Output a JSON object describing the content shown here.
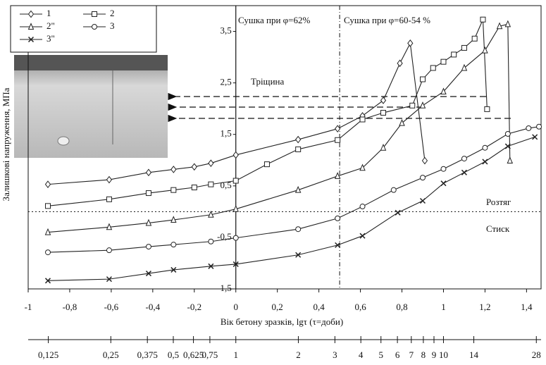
{
  "chart_data": {
    "type": "line",
    "ylabel": "Залишкові напруження, МПа",
    "xlabel": "Вік бетону зразків, lgτ (τ=доби)",
    "xlim": [
      -1,
      1.47
    ],
    "ylim": [
      -1.5,
      4.0
    ],
    "xticks": [
      -1,
      {
        "value": -0.8,
        "label": "-0,8"
      },
      {
        "value": -0.6,
        "label": "-0,6"
      },
      {
        "value": -0.4,
        "label": "-0,4"
      },
      {
        "value": -0.2,
        "label": "-0,2"
      },
      0,
      {
        "value": 0.2,
        "label": "0,2"
      },
      {
        "value": 0.4,
        "label": "0,4"
      },
      {
        "value": 0.6,
        "label": "0,6"
      },
      {
        "value": 0.8,
        "label": "0,8"
      },
      1,
      {
        "value": 1.2,
        "label": "1,2"
      },
      {
        "value": 1.4,
        "label": "1,4"
      }
    ],
    "yticks": [
      {
        "value": 3.5,
        "label": "3,5"
      },
      {
        "value": 2.5,
        "label": "2,5"
      },
      {
        "value": 1.5,
        "label": "1,5"
      },
      {
        "value": 0.5,
        "label": "0,5"
      },
      {
        "value": -0.5,
        "label": "-0,5"
      },
      {
        "value": -1.5,
        "label": "-1,5"
      }
    ],
    "x2ticks": [
      {
        "value": 0.125,
        "label": "0,125"
      },
      {
        "value": 0.25,
        "label": "0,25"
      },
      {
        "value": 0.375,
        "label": "0,375"
      },
      {
        "value": 0.5,
        "label": "0,5"
      },
      {
        "value": 0.625,
        "label": "0,625"
      },
      {
        "value": 0.75,
        "label": "0,75"
      },
      1,
      2,
      3,
      4,
      5,
      6,
      7,
      8,
      9,
      10,
      14,
      28
    ],
    "x2scale": "log",
    "vline": 0.5,
    "hline": 0,
    "annotations": [
      "Сушка при φ=62%",
      "Сушка при φ=60-54 %",
      "Тріщина",
      "Розтяг",
      "Стиск"
    ],
    "series": [
      {
        "name": "1",
        "color": "#222",
        "marker": "diamond",
        "x": [
          -0.905,
          -0.61,
          -0.42,
          -0.3,
          -0.2,
          -0.12,
          0,
          0.3,
          0.49,
          0.61,
          0.71,
          0.79,
          0.84,
          0.91
        ],
        "values": [
          0.53,
          0.62,
          0.76,
          0.82,
          0.87,
          0.94,
          1.1,
          1.4,
          1.61,
          1.86,
          2.16,
          2.88,
          3.27,
          0.99
        ]
      },
      {
        "name": "2",
        "color": "#222",
        "marker": "square",
        "x": [
          -0.905,
          -0.61,
          -0.42,
          -0.3,
          -0.2,
          -0.12,
          0,
          0.15,
          0.3,
          0.49,
          0.61,
          0.71,
          0.85,
          0.9,
          0.95,
          1,
          1.05,
          1.1,
          1.15,
          1.19,
          1.21
        ],
        "values": [
          0.11,
          0.24,
          0.36,
          0.42,
          0.47,
          0.53,
          0.6,
          0.92,
          1.21,
          1.39,
          1.79,
          1.92,
          2.06,
          2.57,
          2.79,
          2.91,
          3.05,
          3.18,
          3.36,
          3.73,
          1.99
        ]
      },
      {
        "name": "2\"",
        "color": "#222",
        "marker": "triangle",
        "x": [
          -0.905,
          -0.61,
          -0.42,
          -0.3,
          -0.12,
          0,
          0.3,
          0.49,
          0.61,
          0.71,
          0.8,
          0.9,
          1,
          1.1,
          1.2,
          1.27,
          1.31,
          1.32
        ],
        "values": [
          -0.4,
          -0.3,
          -0.22,
          -0.16,
          -0.06,
          0.05,
          0.42,
          0.69,
          0.85,
          1.24,
          1.72,
          2.06,
          2.33,
          2.79,
          3.13,
          3.6,
          3.64,
          0.99
        ]
      },
      {
        "name": "3",
        "color": "#222",
        "marker": "circle",
        "x": [
          -0.905,
          -0.61,
          -0.42,
          -0.3,
          -0.12,
          0,
          0.3,
          0.49,
          0.61,
          0.76,
          0.9,
          1,
          1.1,
          1.2,
          1.31,
          1.41,
          1.46
        ],
        "values": [
          -0.79,
          -0.75,
          -0.68,
          -0.64,
          -0.58,
          -0.51,
          -0.34,
          -0.13,
          0.1,
          0.42,
          0.66,
          0.83,
          1.03,
          1.24,
          1.51,
          1.62,
          1.65
        ]
      },
      {
        "name": "3\"",
        "color": "#222",
        "marker": "cross",
        "x": [
          -0.905,
          -0.61,
          -0.42,
          -0.3,
          -0.12,
          0,
          0.3,
          0.49,
          0.61,
          0.78,
          0.9,
          1,
          1.1,
          1.2,
          1.31,
          1.44
        ],
        "values": [
          -1.34,
          -1.31,
          -1.2,
          -1.13,
          -1.06,
          -1.02,
          -0.84,
          -0.65,
          -0.47,
          -0.02,
          0.21,
          0.55,
          0.76,
          0.97,
          1.27,
          1.45
        ]
      }
    ]
  }
}
